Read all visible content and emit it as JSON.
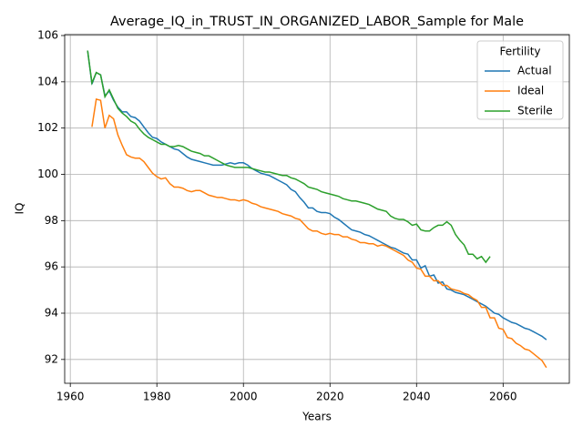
{
  "chart_data": {
    "type": "line",
    "title": "Average_IQ_in_TRUST_IN_ORGANIZED_LABOR_Sample for Male",
    "xlabel": "Years",
    "ylabel": "IQ",
    "x": [
      1964,
      1965,
      1966,
      1967,
      1968,
      1969,
      1970,
      1971,
      1972,
      1973,
      1974,
      1975,
      1976,
      1977,
      1978,
      1979,
      1980,
      1981,
      1982,
      1983,
      1984,
      1985,
      1986,
      1987,
      1988,
      1989,
      1990,
      1991,
      1992,
      1993,
      1994,
      1995,
      1996,
      1997,
      1998,
      1999,
      2000,
      2001,
      2002,
      2003,
      2004,
      2005,
      2006,
      2007,
      2008,
      2009,
      2010,
      2011,
      2012,
      2013,
      2014,
      2015,
      2016,
      2017,
      2018,
      2019,
      2020,
      2021,
      2022,
      2023,
      2024,
      2025,
      2026,
      2027,
      2028,
      2029,
      2030,
      2031,
      2032,
      2033,
      2034,
      2035,
      2036,
      2037,
      2038,
      2039,
      2040,
      2041,
      2042,
      2043,
      2044,
      2045,
      2046,
      2047,
      2048,
      2049,
      2050,
      2051,
      2052,
      2053,
      2054,
      2055,
      2056,
      2057,
      2058,
      2059,
      2060,
      2061,
      2062,
      2063,
      2064,
      2065,
      2066,
      2067,
      2068,
      2069,
      2070
    ],
    "series": [
      {
        "name": "Actual",
        "color": "#1f77b4",
        "values": [
          105.35,
          103.9,
          104.4,
          104.3,
          103.4,
          103.6,
          103.2,
          102.9,
          102.7,
          102.7,
          102.5,
          102.45,
          102.3,
          102.05,
          101.8,
          101.6,
          101.55,
          101.4,
          101.3,
          101.2,
          101.1,
          101.05,
          100.9,
          100.75,
          100.65,
          100.6,
          100.55,
          100.5,
          100.45,
          100.4,
          100.4,
          100.4,
          100.45,
          100.5,
          100.45,
          100.5,
          100.5,
          100.4,
          100.25,
          100.15,
          100.05,
          100.0,
          99.95,
          99.85,
          99.75,
          99.65,
          99.55,
          99.35,
          99.25,
          99.0,
          98.8,
          98.55,
          98.55,
          98.4,
          98.35,
          98.35,
          98.3,
          98.15,
          98.05,
          97.9,
          97.75,
          97.6,
          97.55,
          97.5,
          97.4,
          97.35,
          97.25,
          97.15,
          97.05,
          96.95,
          96.85,
          96.8,
          96.7,
          96.6,
          96.55,
          96.3,
          96.3,
          95.95,
          96.05,
          95.6,
          95.65,
          95.3,
          95.35,
          95.05,
          95.0,
          94.9,
          94.85,
          94.8,
          94.7,
          94.6,
          94.5,
          94.4,
          94.3,
          94.15,
          94.0,
          93.95,
          93.8,
          93.7,
          93.6,
          93.55,
          93.45,
          93.35,
          93.3,
          93.2,
          93.1,
          93.0,
          92.85
        ]
      },
      {
        "name": "Ideal",
        "color": "#ff7f0e",
        "values": [
          null,
          102.05,
          103.25,
          103.2,
          102.0,
          102.55,
          102.4,
          101.7,
          101.25,
          100.85,
          100.75,
          100.7,
          100.7,
          100.55,
          100.3,
          100.05,
          99.9,
          99.8,
          99.85,
          99.6,
          99.45,
          99.45,
          99.4,
          99.3,
          99.25,
          99.3,
          99.3,
          99.2,
          99.1,
          99.05,
          99.0,
          99.0,
          98.95,
          98.9,
          98.9,
          98.85,
          98.9,
          98.85,
          98.75,
          98.7,
          98.6,
          98.55,
          98.5,
          98.45,
          98.4,
          98.3,
          98.25,
          98.2,
          98.1,
          98.05,
          97.85,
          97.65,
          97.55,
          97.55,
          97.45,
          97.4,
          97.45,
          97.4,
          97.4,
          97.3,
          97.3,
          97.2,
          97.15,
          97.05,
          97.05,
          97.0,
          97.0,
          96.9,
          96.95,
          96.9,
          96.8,
          96.7,
          96.6,
          96.5,
          96.3,
          96.2,
          95.95,
          95.9,
          95.6,
          95.6,
          95.4,
          95.4,
          95.2,
          95.2,
          95.05,
          95.0,
          94.95,
          94.85,
          94.8,
          94.65,
          94.55,
          94.25,
          94.25,
          93.8,
          93.8,
          93.35,
          93.3,
          92.95,
          92.9,
          92.7,
          92.6,
          92.45,
          92.4,
          92.25,
          92.1,
          91.95,
          91.65
        ]
      },
      {
        "name": "Sterile",
        "color": "#2ca02c",
        "values": [
          105.35,
          103.95,
          104.4,
          104.3,
          103.35,
          103.65,
          103.25,
          102.85,
          102.65,
          102.5,
          102.3,
          102.2,
          101.95,
          101.75,
          101.6,
          101.5,
          101.4,
          101.3,
          101.3,
          101.2,
          101.2,
          101.25,
          101.2,
          101.1,
          101.0,
          100.95,
          100.9,
          100.8,
          100.8,
          100.7,
          100.6,
          100.5,
          100.4,
          100.35,
          100.3,
          100.3,
          100.3,
          100.3,
          100.25,
          100.2,
          100.15,
          100.1,
          100.1,
          100.05,
          100.0,
          99.95,
          99.95,
          99.85,
          99.8,
          99.7,
          99.6,
          99.45,
          99.4,
          99.35,
          99.25,
          99.2,
          99.15,
          99.1,
          99.05,
          98.95,
          98.9,
          98.85,
          98.85,
          98.8,
          98.75,
          98.7,
          98.6,
          98.5,
          98.45,
          98.4,
          98.2,
          98.1,
          98.05,
          98.05,
          97.95,
          97.8,
          97.85,
          97.6,
          97.55,
          97.55,
          97.7,
          97.8,
          97.8,
          97.95,
          97.8,
          97.4,
          97.15,
          96.95,
          96.55,
          96.55,
          96.35,
          96.45,
          96.2,
          96.45,
          null,
          null,
          null,
          null,
          null,
          null,
          null,
          null,
          null,
          null,
          null,
          null,
          null
        ]
      }
    ],
    "xlim": [
      1958.7,
      2075.3
    ],
    "ylim": [
      90.97,
      106.04
    ],
    "xticks": [
      1960,
      1980,
      2000,
      2020,
      2040,
      2060
    ],
    "yticks": [
      92,
      94,
      96,
      98,
      100,
      102,
      104,
      106
    ],
    "grid": true,
    "legend_title": "Fertility",
    "legend_loc": "upper right"
  }
}
